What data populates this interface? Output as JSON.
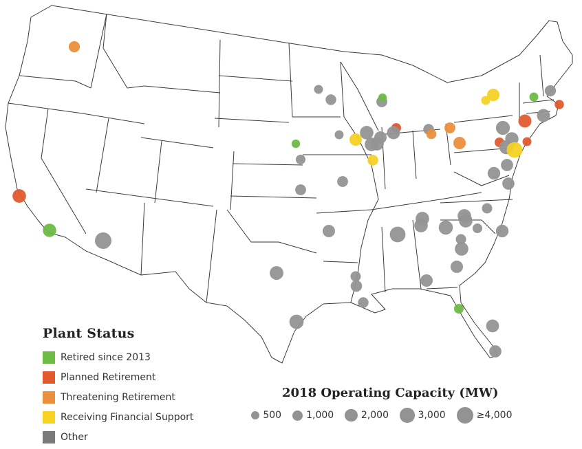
{
  "legend": {
    "status_title": "Plant Status",
    "statuses": [
      {
        "label": "Retired since 2013",
        "color": "#6cbb45"
      },
      {
        "label": "Planned Retirement",
        "color": "#e05a2e"
      },
      {
        "label": "Threatening Retirement",
        "color": "#ec8f3c"
      },
      {
        "label": "Receiving Financial Support",
        "color": "#f5d224"
      },
      {
        "label": "Other",
        "color": "#7a7a7a"
      }
    ],
    "capacity_title": "2018 Operating Capacity (MW)",
    "capacities": [
      {
        "label": "500",
        "mw": 500
      },
      {
        "label": "1,000",
        "mw": 1000
      },
      {
        "label": "2,000",
        "mw": 2000
      },
      {
        "label": "3,000",
        "mw": 3000
      },
      {
        "label": "≥4,000",
        "mw": 4000
      }
    ]
  },
  "plants": [
    {
      "name": "plant-wa",
      "status": "threatening",
      "mw": 1300
    },
    {
      "name": "plant-ca-diablo",
      "status": "planned",
      "mw": 2300
    },
    {
      "name": "plant-ca-songs",
      "status": "retired",
      "mw": 2200
    },
    {
      "name": "plant-az-palo-verde",
      "status": "other",
      "mw": 4000
    },
    {
      "name": "plant-tx-comanche",
      "status": "other",
      "mw": 2400
    },
    {
      "name": "plant-tx-south-texas",
      "status": "other",
      "mw": 2700
    },
    {
      "name": "plant-ks-wolf-creek",
      "status": "other",
      "mw": 1200
    },
    {
      "name": "plant-ne-fort-calhoun",
      "status": "retired",
      "mw": 500
    },
    {
      "name": "plant-ne-cooper",
      "status": "other",
      "mw": 800
    },
    {
      "name": "plant-mn-monticello",
      "status": "other",
      "mw": 600
    },
    {
      "name": "plant-mn-prairie",
      "status": "other",
      "mw": 1100
    },
    {
      "name": "plant-ia-duane-arnold",
      "status": "other",
      "mw": 600
    },
    {
      "name": "plant-wi-point-beach",
      "status": "other",
      "mw": 1200
    },
    {
      "name": "plant-wi-kewaunee",
      "status": "retired",
      "mw": 500
    },
    {
      "name": "plant-mo-callaway",
      "status": "other",
      "mw": 1200
    },
    {
      "name": "plant-ar-ano",
      "status": "other",
      "mw": 1800
    },
    {
      "name": "plant-la-river-bend",
      "status": "other",
      "mw": 1000
    },
    {
      "name": "plant-la-waterford",
      "status": "other",
      "mw": 1100
    },
    {
      "name": "plant-ms-grand-gulf",
      "status": "other",
      "mw": 1400
    },
    {
      "name": "plant-il-quad-cities",
      "status": "financial",
      "mw": 1800
    },
    {
      "name": "plant-il-byron",
      "status": "other",
      "mw": 2300
    },
    {
      "name": "plant-il-braidwood",
      "status": "other",
      "mw": 2300
    },
    {
      "name": "plant-il-lasalle",
      "status": "other",
      "mw": 2300
    },
    {
      "name": "plant-il-dresden",
      "status": "other",
      "mw": 1800
    },
    {
      "name": "plant-il-clinton",
      "status": "financial",
      "mw": 1100
    },
    {
      "name": "plant-mi-palisades",
      "status": "planned",
      "mw": 800
    },
    {
      "name": "plant-mi-cook",
      "status": "other",
      "mw": 2100
    },
    {
      "name": "plant-mi-fermi",
      "status": "other",
      "mw": 1100
    },
    {
      "name": "plant-oh-davis-besse",
      "status": "threatening",
      "mw": 900
    },
    {
      "name": "plant-oh-perry",
      "status": "threatening",
      "mw": 1200
    },
    {
      "name": "plant-pa-beaver-valley",
      "status": "threatening",
      "mw": 1800
    },
    {
      "name": "plant-pa-susquehanna",
      "status": "other",
      "mw": 2500
    },
    {
      "name": "plant-pa-limerick",
      "status": "other",
      "mw": 2200
    },
    {
      "name": "plant-pa-tmi",
      "status": "planned",
      "mw": 800
    },
    {
      "name": "plant-pa-peach-bottom",
      "status": "other",
      "mw": 2600
    },
    {
      "name": "plant-nj-salem-hope",
      "status": "financial",
      "mw": 3500
    },
    {
      "name": "plant-nj-oyster-creek",
      "status": "planned",
      "mw": 600
    },
    {
      "name": "plant-md-calvert",
      "status": "other",
      "mw": 1700
    },
    {
      "name": "plant-ny-ginna",
      "status": "financial",
      "mw": 600
    },
    {
      "name": "plant-ny-nine-mile",
      "status": "financial",
      "mw": 1800
    },
    {
      "name": "plant-ny-indian-point",
      "status": "planned",
      "mw": 2100
    },
    {
      "name": "plant-ct-millstone",
      "status": "other",
      "mw": 2100
    },
    {
      "name": "plant-ma-pilgrim",
      "status": "planned",
      "mw": 700
    },
    {
      "name": "plant-nh-seabrook",
      "status": "other",
      "mw": 1300
    },
    {
      "name": "plant-vt-yankee",
      "status": "retired",
      "mw": 600
    },
    {
      "name": "plant-va-north-anna",
      "status": "other",
      "mw": 1900
    },
    {
      "name": "plant-va-surry",
      "status": "other",
      "mw": 1700
    },
    {
      "name": "plant-tn-watts-bar",
      "status": "other",
      "mw": 2300
    },
    {
      "name": "plant-tn-sequoyah",
      "status": "other",
      "mw": 2300
    },
    {
      "name": "plant-al-browns-ferry",
      "status": "other",
      "mw": 3500
    },
    {
      "name": "plant-al-farley",
      "status": "other",
      "mw": 1800
    },
    {
      "name": "plant-nc-mcguire",
      "status": "other",
      "mw": 2300
    },
    {
      "name": "plant-nc-harris",
      "status": "other",
      "mw": 1000
    },
    {
      "name": "plant-nc-brunswick",
      "status": "other",
      "mw": 1900
    },
    {
      "name": "plant-sc-oconee",
      "status": "other",
      "mw": 2600
    },
    {
      "name": "plant-sc-catawba",
      "status": "other",
      "mw": 2300
    },
    {
      "name": "plant-sc-robinson",
      "status": "other",
      "mw": 800
    },
    {
      "name": "plant-sc-summer",
      "status": "other",
      "mw": 1000
    },
    {
      "name": "plant-ga-vogtle",
      "status": "other",
      "mw": 2300
    },
    {
      "name": "plant-ga-hatch",
      "status": "other",
      "mw": 1800
    },
    {
      "name": "plant-fl-crystal-river",
      "status": "retired",
      "mw": 800
    },
    {
      "name": "plant-fl-st-lucie",
      "status": "other",
      "mw": 2000
    },
    {
      "name": "plant-fl-turkey-point",
      "status": "other",
      "mw": 1700
    }
  ]
}
